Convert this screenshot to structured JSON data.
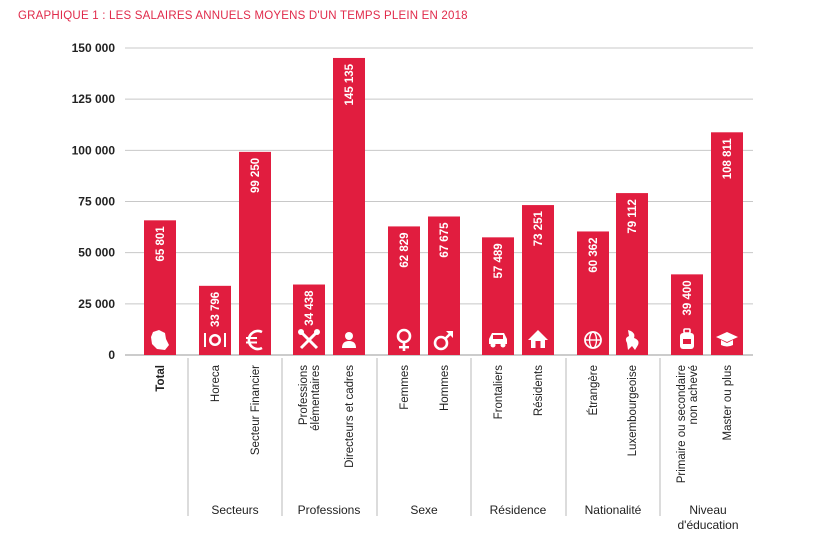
{
  "chart_data": {
    "type": "bar",
    "title": "GRAPHIQUE 1 : LES SALAIRES ANNUELS MOYENS D'UN TEMPS PLEIN EN 2018",
    "bar_color": "#e11d3f",
    "ylim": [
      0,
      150000
    ],
    "yticks": [
      {
        "value": 0,
        "label": "0"
      },
      {
        "value": 25000,
        "label": "25 000"
      },
      {
        "value": 50000,
        "label": "50 000"
      },
      {
        "value": 75000,
        "label": "75 000"
      },
      {
        "value": 100000,
        "label": "100 000"
      },
      {
        "value": 125000,
        "label": "125 000"
      },
      {
        "value": 150000,
        "label": "150 000"
      }
    ],
    "grid": true,
    "bars": [
      {
        "category": "Total",
        "value": 65801,
        "label": "65 801",
        "icon": "luxembourg-map-icon",
        "group": ""
      },
      {
        "category": "Horeca",
        "value": 33796,
        "label": "33 796",
        "icon": "cutlery-icon",
        "group": "Secteurs"
      },
      {
        "category": "Secteur Financier",
        "value": 99250,
        "label": "99 250",
        "icon": "euro-icon",
        "group": "Secteurs"
      },
      {
        "category": "Professions élémentaires",
        "value": 34438,
        "label": "34 438",
        "icon": "tools-icon",
        "group": "Professions"
      },
      {
        "category": "Directeurs et cadres",
        "value": 145135,
        "label": "145 135",
        "icon": "person-icon",
        "group": "Professions"
      },
      {
        "category": "Femmes",
        "value": 62829,
        "label": "62 829",
        "icon": "female-icon",
        "group": "Sexe"
      },
      {
        "category": "Hommes",
        "value": 67675,
        "label": "67 675",
        "icon": "male-icon",
        "group": "Sexe"
      },
      {
        "category": "Frontaliers",
        "value": 57489,
        "label": "57 489",
        "icon": "car-icon",
        "group": "Résidence"
      },
      {
        "category": "Résidents",
        "value": 73251,
        "label": "73 251",
        "icon": "house-icon",
        "group": "Résidence"
      },
      {
        "category": "Étrangère",
        "value": 60362,
        "label": "60 362",
        "icon": "globe-icon",
        "group": "Nationalité"
      },
      {
        "category": "Luxembourgeoise",
        "value": 79112,
        "label": "79 112",
        "icon": "lion-icon",
        "group": "Nationalité"
      },
      {
        "category": "Primaire ou secondaire non achevé",
        "value": 39400,
        "label": "39 400",
        "icon": "backpack-icon",
        "group": "Niveau d'éducation"
      },
      {
        "category": "Master ou plus",
        "value": 108811,
        "label": "108 811",
        "icon": "graduation-cap-icon",
        "group": "Niveau d'éducation"
      }
    ],
    "groups": [
      "Secteurs",
      "Professions",
      "Sexe",
      "Résidence",
      "Nationalité",
      "Niveau d'éducation"
    ]
  }
}
